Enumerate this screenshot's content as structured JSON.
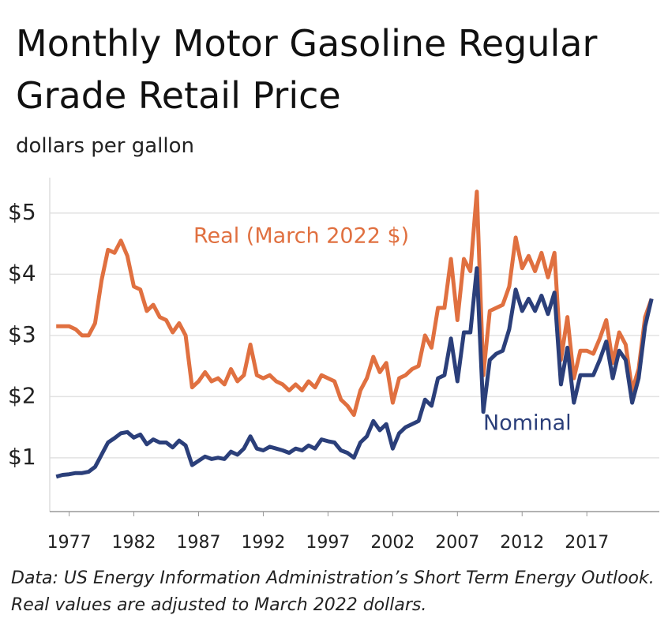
{
  "chart_data": {
    "type": "line",
    "title": "Monthly Motor Gasoline Regular Grade Retail Price",
    "subtitle": "dollars per gallon",
    "note": "Data: US Energy Information Administration’s Short Term Energy Outlook. Real values are adjusted to March 2022 dollars.",
    "x": [
      1976.0,
      1976.5,
      1977.0,
      1977.5,
      1978.0,
      1978.5,
      1979.0,
      1979.5,
      1980.0,
      1980.5,
      1981.0,
      1981.5,
      1982.0,
      1982.5,
      1983.0,
      1983.5,
      1984.0,
      1984.5,
      1985.0,
      1985.5,
      1986.0,
      1986.5,
      1987.0,
      1987.5,
      1988.0,
      1988.5,
      1989.0,
      1989.5,
      1990.0,
      1990.5,
      1991.0,
      1991.5,
      1992.0,
      1992.5,
      1993.0,
      1993.5,
      1994.0,
      1994.5,
      1995.0,
      1995.5,
      1996.0,
      1996.5,
      1997.0,
      1997.5,
      1998.0,
      1998.5,
      1999.0,
      1999.5,
      2000.0,
      2000.5,
      2001.0,
      2001.5,
      2002.0,
      2002.5,
      2003.0,
      2003.5,
      2004.0,
      2004.5,
      2005.0,
      2005.5,
      2006.0,
      2006.5,
      2007.0,
      2007.5,
      2008.0,
      2008.5,
      2009.0,
      2009.5,
      2010.0,
      2010.5,
      2011.0,
      2011.5,
      2012.0,
      2012.5,
      2013.0,
      2013.5,
      2014.0,
      2014.5,
      2015.0,
      2015.5,
      2016.0,
      2016.5,
      2017.0,
      2017.5,
      2018.0,
      2018.5,
      2019.0,
      2019.5,
      2020.0,
      2020.5,
      2021.0,
      2021.5,
      2022.0
    ],
    "series": [
      {
        "name": "Real (March 2022 $)",
        "color": "#e07040",
        "values": [
          3.15,
          3.15,
          3.15,
          3.1,
          3.0,
          3.0,
          3.2,
          3.9,
          4.4,
          4.35,
          4.55,
          4.3,
          3.8,
          3.75,
          3.4,
          3.5,
          3.3,
          3.25,
          3.05,
          3.2,
          3.0,
          2.15,
          2.25,
          2.4,
          2.25,
          2.3,
          2.2,
          2.45,
          2.25,
          2.35,
          2.85,
          2.35,
          2.3,
          2.35,
          2.25,
          2.2,
          2.1,
          2.2,
          2.1,
          2.25,
          2.15,
          2.35,
          2.3,
          2.25,
          1.95,
          1.85,
          1.7,
          2.1,
          2.3,
          2.65,
          2.4,
          2.55,
          1.9,
          2.3,
          2.35,
          2.45,
          2.5,
          3.0,
          2.8,
          3.45,
          3.45,
          4.25,
          3.25,
          4.25,
          4.05,
          5.35,
          2.35,
          3.4,
          3.45,
          3.5,
          3.8,
          4.6,
          4.1,
          4.3,
          4.05,
          4.35,
          3.95,
          4.35,
          2.6,
          3.3,
          2.3,
          2.75,
          2.75,
          2.7,
          2.95,
          3.25,
          2.55,
          3.05,
          2.85,
          2.1,
          2.45,
          3.3,
          3.6
        ]
      },
      {
        "name": "Nominal",
        "color": "#2b3f7a",
        "values": [
          0.69,
          0.72,
          0.73,
          0.75,
          0.75,
          0.77,
          0.85,
          1.05,
          1.25,
          1.32,
          1.4,
          1.42,
          1.33,
          1.38,
          1.22,
          1.3,
          1.25,
          1.25,
          1.17,
          1.28,
          1.2,
          0.88,
          0.95,
          1.02,
          0.98,
          1.0,
          0.98,
          1.1,
          1.05,
          1.15,
          1.35,
          1.15,
          1.12,
          1.18,
          1.15,
          1.12,
          1.08,
          1.15,
          1.12,
          1.2,
          1.15,
          1.3,
          1.27,
          1.25,
          1.12,
          1.08,
          1.0,
          1.25,
          1.35,
          1.6,
          1.45,
          1.55,
          1.15,
          1.4,
          1.5,
          1.55,
          1.6,
          1.95,
          1.85,
          2.3,
          2.35,
          2.95,
          2.25,
          3.05,
          3.05,
          4.1,
          1.75,
          2.6,
          2.7,
          2.75,
          3.1,
          3.75,
          3.4,
          3.6,
          3.4,
          3.65,
          3.35,
          3.7,
          2.2,
          2.8,
          1.9,
          2.35,
          2.35,
          2.35,
          2.6,
          2.9,
          2.3,
          2.75,
          2.6,
          1.9,
          2.3,
          3.15,
          3.6
        ]
      }
    ],
    "xlim": [
      1975.5,
      2022.6
    ],
    "xticks": [
      1977,
      1982,
      1987,
      1992,
      1997,
      2002,
      2007,
      2012,
      2017
    ],
    "ylim": [
      0.12,
      5.58
    ],
    "yticks": [
      {
        "value": 1,
        "label": "$1"
      },
      {
        "value": 2,
        "label": "$2"
      },
      {
        "value": 3,
        "label": "$3"
      },
      {
        "value": 4,
        "label": "$4"
      },
      {
        "value": 5,
        "label": "$5"
      }
    ],
    "grid": true
  }
}
